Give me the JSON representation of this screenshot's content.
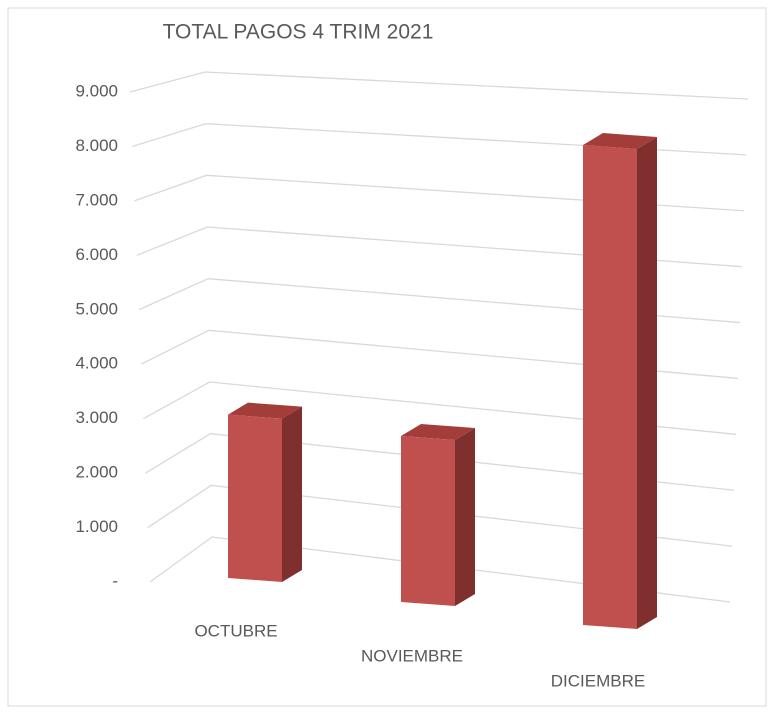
{
  "chart_data": {
    "type": "bar3d",
    "title": "TOTAL PAGOS  4 TRIM 2021",
    "categories": [
      "OCTUBRE",
      "NOVIEMBRE",
      "DICIEMBRE"
    ],
    "values": [
      3000,
      2900,
      8000
    ],
    "color": "#c0504d",
    "ylim": [
      0,
      9000
    ],
    "yticks": [
      {
        "value": 0,
        "label": "-"
      },
      {
        "value": 1000,
        "label": "1.000"
      },
      {
        "value": 2000,
        "label": "2.000"
      },
      {
        "value": 3000,
        "label": "3.000"
      },
      {
        "value": 4000,
        "label": "4.000"
      },
      {
        "value": 5000,
        "label": "5.000"
      },
      {
        "value": 6000,
        "label": "6.000"
      },
      {
        "value": 7000,
        "label": "7.000"
      },
      {
        "value": 8000,
        "label": "8.000"
      },
      {
        "value": 9000,
        "label": "9.000"
      }
    ],
    "grid": true
  }
}
